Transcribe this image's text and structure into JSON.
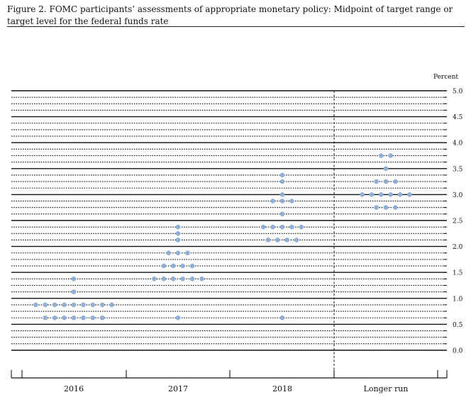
{
  "figure": {
    "title": "Figure 2. FOMC participants’ assessments of appropriate monetary policy: Midpoint of target range or target level for the federal funds rate"
  },
  "colors": {
    "dot": "#91afd4",
    "grid": "#111111"
  },
  "chart_data": {
    "type": "scatter",
    "subtype": "dot-plot",
    "title": "Figure 2. FOMC participants’ assessments of appropriate monetary policy: Midpoint of target range or target level for the federal funds rate",
    "xlabel": "",
    "ylabel": "",
    "unit_label": "Percent",
    "ylim": [
      0,
      5
    ],
    "yticks": [
      0.0,
      0.5,
      1.0,
      1.5,
      2.0,
      2.5,
      3.0,
      3.5,
      4.0,
      4.5,
      5.0
    ],
    "ytick_labels": [
      "0.0",
      "0.5",
      "1.0",
      "1.5",
      "2.0",
      "2.5",
      "3.0",
      "3.5",
      "4.0",
      "4.5",
      "5.0"
    ],
    "categories": [
      "2016",
      "2017",
      "2018",
      "Longer run"
    ],
    "grid": true,
    "points": [
      {
        "category": "2016",
        "values": [
          {
            "y": 1.375,
            "count": 1
          },
          {
            "y": 1.125,
            "count": 1
          },
          {
            "y": 0.875,
            "count": 9
          },
          {
            "y": 0.625,
            "count": 7
          }
        ]
      },
      {
        "category": "2017",
        "values": [
          {
            "y": 2.375,
            "count": 1
          },
          {
            "y": 2.25,
            "count": 1
          },
          {
            "y": 2.125,
            "count": 1
          },
          {
            "y": 1.875,
            "count": 3
          },
          {
            "y": 1.625,
            "count": 4
          },
          {
            "y": 1.375,
            "count": 6
          },
          {
            "y": 0.625,
            "count": 1
          }
        ]
      },
      {
        "category": "2018",
        "values": [
          {
            "y": 3.375,
            "count": 1
          },
          {
            "y": 3.25,
            "count": 1
          },
          {
            "y": 3.0,
            "count": 1
          },
          {
            "y": 2.875,
            "count": 3
          },
          {
            "y": 2.625,
            "count": 1
          },
          {
            "y": 2.375,
            "count": 5
          },
          {
            "y": 2.125,
            "count": 4
          },
          {
            "y": 0.625,
            "count": 1
          }
        ]
      },
      {
        "category": "Longer run",
        "values": [
          {
            "y": 3.75,
            "count": 2
          },
          {
            "y": 3.5,
            "count": 1
          },
          {
            "y": 3.25,
            "count": 3
          },
          {
            "y": 3.0,
            "count": 6
          },
          {
            "y": 2.75,
            "count": 3
          }
        ]
      }
    ]
  }
}
